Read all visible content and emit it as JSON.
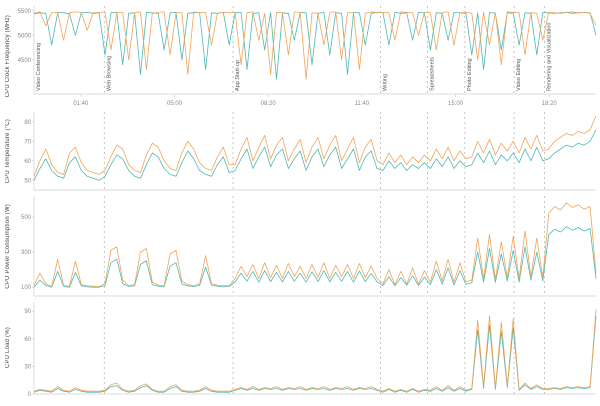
{
  "colors": {
    "series_orange": "#f0a558",
    "series_teal": "#4fb8b4",
    "axis_line": "#cfcfcf",
    "phase_line": "#adadad",
    "tick_text": "#8a8a8a",
    "phase_text": "#555555"
  },
  "time_axis": {
    "range": [
      0,
      1200
    ],
    "unit": "mm:ss",
    "ticks": [
      {
        "t": 100,
        "label": "01:40"
      },
      {
        "t": 300,
        "label": "05:00"
      },
      {
        "t": 500,
        "label": "08:20"
      },
      {
        "t": 700,
        "label": "11:40"
      },
      {
        "t": 900,
        "label": "15:00"
      },
      {
        "t": 1100,
        "label": "18:20"
      }
    ]
  },
  "phases": [
    {
      "label": "Video Conferencing",
      "start": 0,
      "end": 150
    },
    {
      "label": "Web Browsing",
      "start": 150,
      "end": 425
    },
    {
      "label": "App Start-up",
      "start": 425,
      "end": 740
    },
    {
      "label": "Writing",
      "start": 740,
      "end": 840
    },
    {
      "label": "Spreadsheets",
      "start": 840,
      "end": 920
    },
    {
      "label": "Photo Editing",
      "start": 920,
      "end": 1025
    },
    {
      "label": "Video Editing",
      "start": 1025,
      "end": 1090
    },
    {
      "label": "Rendering and Visualization",
      "start": 1090,
      "end": 1200
    }
  ],
  "chart_data": [
    {
      "type": "line",
      "title": "",
      "xlabel": "",
      "ylabel": "CPU Clock Frequency (MHz)",
      "ylim": [
        3800,
        5600
      ],
      "yticks": [
        4500,
        5000,
        5500
      ],
      "grid": false,
      "legend": "none",
      "series": [
        {
          "name": "teal",
          "color": "#4fb8b4",
          "values": [
            5440,
            5460,
            5450,
            4800,
            5470,
            5460,
            5440,
            5000,
            5460,
            5470,
            5450,
            5460,
            4600,
            5460,
            5470,
            4400,
            5450,
            5460,
            4200,
            5470,
            5460,
            5450,
            4700,
            5460,
            5470,
            4500,
            5450,
            5460,
            5470,
            4300,
            5460,
            5450,
            5470,
            4800,
            5460,
            5470,
            4300,
            5450,
            5460,
            4700,
            5470,
            4100,
            5460,
            5450,
            4900,
            5470,
            5460,
            4400,
            5450,
            5470,
            4600,
            5460,
            5450,
            4200,
            5470,
            5460,
            4800,
            5450,
            5470,
            5460,
            4800,
            5470,
            5450,
            5460,
            4900,
            5470,
            5460,
            4700,
            5460,
            5450,
            4900,
            5470,
            5460,
            5450,
            4600,
            5460,
            4300,
            5470,
            5450,
            4700,
            5460,
            5450,
            4800,
            5460,
            5450,
            4600,
            5470,
            5460,
            5450,
            5460,
            5470,
            5450,
            5460,
            5470,
            5460,
            5000
          ]
        },
        {
          "name": "orange",
          "color": "#f0a558",
          "values": [
            5450,
            5480,
            5200,
            5460,
            5470,
            4900,
            5460,
            5480,
            5470,
            5100,
            5460,
            5470,
            5480,
            4700,
            5460,
            5470,
            4500,
            5460,
            5480,
            4300,
            5450,
            5470,
            5480,
            4600,
            5470,
            5460,
            4200,
            5480,
            5460,
            5470,
            4800,
            5450,
            5470,
            5460,
            5470,
            4400,
            5460,
            5480,
            4900,
            5450,
            4200,
            5470,
            5460,
            4600,
            5480,
            5470,
            4100,
            5460,
            5450,
            4800,
            5470,
            5480,
            4500,
            5460,
            5470,
            4300,
            5450,
            5480,
            5460,
            5470,
            5460,
            4900,
            5480,
            5470,
            5460,
            5000,
            5470,
            5460,
            4700,
            5470,
            5480,
            4800,
            5460,
            5470,
            5450,
            4500,
            5470,
            4800,
            5460,
            4400,
            5480,
            5470,
            5460,
            4600,
            5470,
            5450,
            4900,
            5470,
            5460,
            5450,
            5470,
            5480,
            5460,
            5470,
            5450,
            5200
          ]
        }
      ]
    },
    {
      "type": "line",
      "title": "",
      "xlabel": "",
      "ylabel": "CPU Temperature (°C)",
      "ylim": [
        45,
        85
      ],
      "yticks": [
        50,
        60,
        70,
        80
      ],
      "grid": false,
      "legend": "none",
      "series": [
        {
          "name": "teal",
          "color": "#4fb8b4",
          "values": [
            50,
            56,
            61,
            55,
            52,
            51,
            59,
            62,
            55,
            52,
            51,
            50,
            52,
            58,
            63,
            61,
            55,
            52,
            51,
            58,
            64,
            62,
            56,
            53,
            52,
            59,
            65,
            61,
            55,
            53,
            52,
            58,
            62,
            54,
            55,
            61,
            66,
            56,
            62,
            67,
            57,
            63,
            66,
            56,
            61,
            65,
            55,
            62,
            66,
            57,
            63,
            67,
            56,
            61,
            66,
            55,
            62,
            65,
            56,
            55,
            60,
            56,
            59,
            55,
            58,
            56,
            59,
            56,
            61,
            57,
            62,
            56,
            60,
            57,
            58,
            64,
            59,
            65,
            58,
            63,
            60,
            64,
            59,
            66,
            60,
            67,
            60,
            61,
            64,
            66,
            68,
            67,
            69,
            68,
            70,
            76
          ]
        },
        {
          "name": "orange",
          "color": "#f0a558",
          "values": [
            52,
            60,
            66,
            58,
            54,
            53,
            64,
            67,
            59,
            55,
            54,
            53,
            55,
            62,
            68,
            66,
            58,
            55,
            54,
            63,
            69,
            67,
            60,
            56,
            55,
            64,
            70,
            66,
            59,
            56,
            55,
            62,
            67,
            58,
            58,
            66,
            72,
            60,
            67,
            73,
            61,
            68,
            72,
            60,
            66,
            71,
            59,
            67,
            72,
            61,
            68,
            73,
            60,
            66,
            72,
            59,
            67,
            71,
            60,
            58,
            64,
            59,
            63,
            58,
            62,
            59,
            63,
            60,
            66,
            61,
            67,
            60,
            65,
            61,
            62,
            70,
            64,
            71,
            63,
            69,
            65,
            70,
            64,
            72,
            66,
            73,
            65,
            66,
            70,
            72,
            74,
            73,
            75,
            74,
            76,
            83
          ]
        }
      ]
    },
    {
      "type": "line",
      "title": "",
      "xlabel": "",
      "ylabel": "CPU Power Consumption (W)",
      "ylim": [
        50,
        620
      ],
      "yticks": [
        100,
        300,
        500
      ],
      "grid": false,
      "legend": "none",
      "series": [
        {
          "name": "teal",
          "color": "#4fb8b4",
          "values": [
            100,
            140,
            110,
            100,
            190,
            105,
            100,
            185,
            108,
            102,
            100,
            100,
            110,
            240,
            260,
            120,
            105,
            108,
            230,
            250,
            115,
            106,
            104,
            220,
            240,
            118,
            108,
            104,
            110,
            215,
            112,
            106,
            102,
            105,
            130,
            180,
            135,
            190,
            128,
            195,
            132,
            185,
            130,
            190,
            134,
            180,
            128,
            188,
            132,
            195,
            130,
            185,
            134,
            190,
            128,
            192,
            132,
            180,
            130,
            110,
            160,
            108,
            155,
            112,
            165,
            110,
            158,
            115,
            200,
            118,
            210,
            112,
            195,
            116,
            125,
            300,
            130,
            320,
            128,
            290,
            135,
            310,
            130,
            330,
            140,
            300,
            135,
            400,
            430,
            415,
            445,
            425,
            440,
            420,
            435,
            150
          ]
        },
        {
          "name": "orange",
          "color": "#f0a558",
          "values": [
            110,
            180,
            120,
            105,
            260,
            110,
            105,
            250,
            115,
            108,
            106,
            105,
            120,
            310,
            330,
            140,
            110,
            115,
            300,
            320,
            130,
            112,
            110,
            290,
            310,
            135,
            115,
            110,
            118,
            280,
            120,
            112,
            108,
            110,
            150,
            220,
            160,
            230,
            150,
            240,
            155,
            225,
            150,
            235,
            160,
            220,
            150,
            230,
            155,
            240,
            150,
            225,
            160,
            230,
            150,
            235,
            155,
            220,
            150,
            120,
            200,
            115,
            190,
            118,
            210,
            116,
            195,
            130,
            250,
            135,
            260,
            128,
            240,
            132,
            140,
            380,
            150,
            400,
            145,
            360,
            155,
            390,
            150,
            420,
            160,
            380,
            155,
            520,
            560,
            540,
            580,
            555,
            570,
            545,
            560,
            180
          ]
        }
      ]
    },
    {
      "type": "line",
      "title": "",
      "xlabel": "",
      "ylabel": "CPU Load (%)",
      "ylim": [
        0,
        100
      ],
      "yticks": [
        0,
        30,
        60,
        90
      ],
      "grid": false,
      "legend": "none",
      "series": [
        {
          "name": "teal",
          "color": "#4fb8b4",
          "values": [
            2,
            4,
            3,
            2,
            6,
            3,
            2,
            5,
            3,
            2,
            2,
            2,
            3,
            8,
            9,
            4,
            2,
            3,
            7,
            9,
            4,
            2,
            2,
            6,
            8,
            3,
            2,
            2,
            3,
            6,
            3,
            2,
            2,
            2,
            4,
            6,
            4,
            6,
            4,
            6,
            5,
            6,
            4,
            6,
            5,
            6,
            4,
            6,
            5,
            6,
            4,
            6,
            5,
            6,
            4,
            6,
            5,
            6,
            4,
            2,
            5,
            2,
            4,
            2,
            5,
            2,
            4,
            3,
            6,
            3,
            7,
            3,
            6,
            3,
            5,
            70,
            6,
            75,
            5,
            68,
            7,
            72,
            4,
            10,
            5,
            8,
            5,
            5,
            6,
            5,
            7,
            6,
            7,
            6,
            7,
            85
          ]
        },
        {
          "name": "orange",
          "color": "#f0a558",
          "values": [
            3,
            5,
            4,
            3,
            8,
            4,
            3,
            7,
            4,
            3,
            3,
            3,
            4,
            10,
            12,
            5,
            3,
            4,
            9,
            11,
            5,
            3,
            3,
            8,
            10,
            4,
            3,
            3,
            4,
            8,
            4,
            3,
            3,
            3,
            5,
            7,
            5,
            8,
            5,
            7,
            6,
            8,
            5,
            7,
            6,
            8,
            5,
            7,
            6,
            8,
            5,
            7,
            6,
            8,
            5,
            7,
            6,
            8,
            5,
            3,
            6,
            3,
            5,
            3,
            6,
            3,
            5,
            4,
            8,
            4,
            9,
            4,
            8,
            4,
            6,
            80,
            8,
            85,
            7,
            78,
            9,
            82,
            5,
            12,
            6,
            10,
            6,
            6,
            7,
            6,
            8,
            7,
            8,
            7,
            8,
            92
          ]
        }
      ]
    }
  ]
}
